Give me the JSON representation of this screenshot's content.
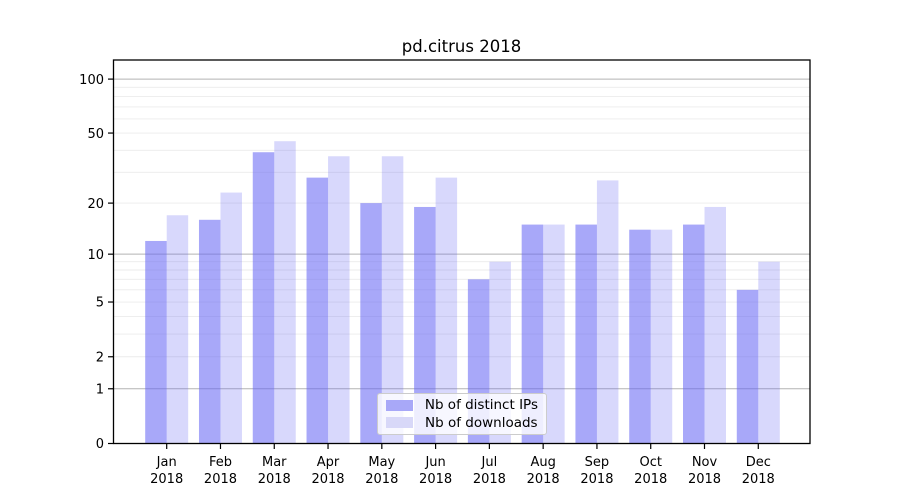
{
  "chart_data": {
    "type": "bar",
    "title": "pd.citrus 2018",
    "categories": [
      "Jan",
      "Feb",
      "Mar",
      "Apr",
      "May",
      "Jun",
      "Jul",
      "Aug",
      "Sep",
      "Oct",
      "Nov",
      "Dec"
    ],
    "year": "2018",
    "series": [
      {
        "name": "Nb of distinct IPs",
        "values": [
          12,
          16,
          39,
          28,
          20,
          19,
          7,
          15,
          15,
          14,
          15,
          6
        ],
        "base_color": "#6464f5",
        "fill_alpha": 0.56,
        "swatch_color": "#a8a8f8"
      },
      {
        "name": "Nb of downloads",
        "values": [
          17,
          23,
          45,
          37,
          37,
          28,
          9,
          15,
          27,
          14,
          19,
          9
        ],
        "base_color": "#6464f5",
        "fill_alpha": 0.25,
        "swatch_color": "#d8d8f8"
      }
    ],
    "xlabel": "",
    "ylabel": "",
    "yscale": "log1p",
    "ylim": [
      0,
      128
    ],
    "ytick_labels": [
      0,
      1,
      2,
      5,
      10,
      20,
      50,
      100
    ],
    "major_gridlines": [
      1,
      10,
      100
    ],
    "minor_gridlines": [
      2,
      3,
      4,
      5,
      6,
      7,
      8,
      9,
      20,
      30,
      40,
      50,
      60,
      70,
      80,
      90
    ],
    "grid": "on",
    "legend_position": "lower-center",
    "colors": {
      "grid_major": "#b3b3b3",
      "grid_minor": "#ebebeb",
      "axis": "#000000",
      "text": "#000000",
      "background": "#ffffff"
    }
  }
}
